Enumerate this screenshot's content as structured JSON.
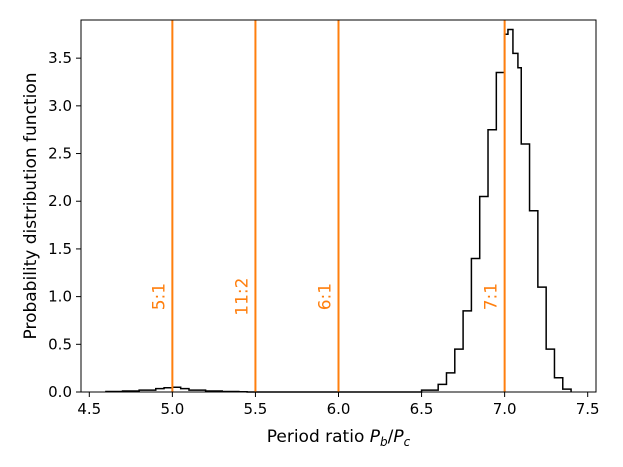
{
  "chart_data": {
    "type": "histogram",
    "title": "",
    "xlabel": "Period ratio P_b/P_c",
    "xlabel_parts": {
      "prefix": "Period ratio ",
      "num": "P",
      "num_sub": "b",
      "sep": "/",
      "den": "P",
      "den_sub": "c"
    },
    "ylabel": "Probability distribution function",
    "xlim": [
      4.45,
      7.55
    ],
    "ylim": [
      0,
      3.9
    ],
    "xticks": [
      4.5,
      5.0,
      5.5,
      6.0,
      6.5,
      7.0,
      7.5
    ],
    "xtick_labels": [
      "4.5",
      "5.0",
      "5.5",
      "6.0",
      "6.5",
      "7.0",
      "7.5"
    ],
    "yticks": [
      0.0,
      0.5,
      1.0,
      1.5,
      2.0,
      2.5,
      3.0,
      3.5
    ],
    "ytick_labels": [
      "0.0",
      "0.5",
      "1.0",
      "1.5",
      "2.0",
      "2.5",
      "3.0",
      "3.5"
    ],
    "grid": false,
    "histogram": {
      "color": "#000000",
      "bin_edges": [
        4.6,
        4.7,
        4.8,
        4.9,
        4.95,
        5.0,
        5.05,
        5.1,
        5.2,
        5.3,
        5.4,
        5.45,
        6.5,
        6.6,
        6.65,
        6.7,
        6.75,
        6.8,
        6.85,
        6.9,
        6.95,
        7.0,
        7.02,
        7.05,
        7.08,
        7.1,
        7.15,
        7.2,
        7.25,
        7.3,
        7.35,
        7.4
      ],
      "values": [
        0.005,
        0.01,
        0.02,
        0.035,
        0.045,
        0.05,
        0.035,
        0.02,
        0.01,
        0.005,
        0.002,
        0.0,
        0.02,
        0.08,
        0.2,
        0.45,
        0.85,
        1.4,
        2.05,
        2.75,
        3.35,
        3.75,
        3.8,
        3.55,
        3.4,
        2.6,
        1.9,
        1.1,
        0.45,
        0.15,
        0.03
      ]
    },
    "resonances": {
      "color": "#ff7f0e",
      "lines": [
        {
          "x": 5.0,
          "label": "5:1"
        },
        {
          "x": 5.5,
          "label": "11:2"
        },
        {
          "x": 6.0,
          "label": "6:1"
        },
        {
          "x": 7.0,
          "label": "7:1"
        }
      ],
      "label_y": 1.0
    }
  }
}
